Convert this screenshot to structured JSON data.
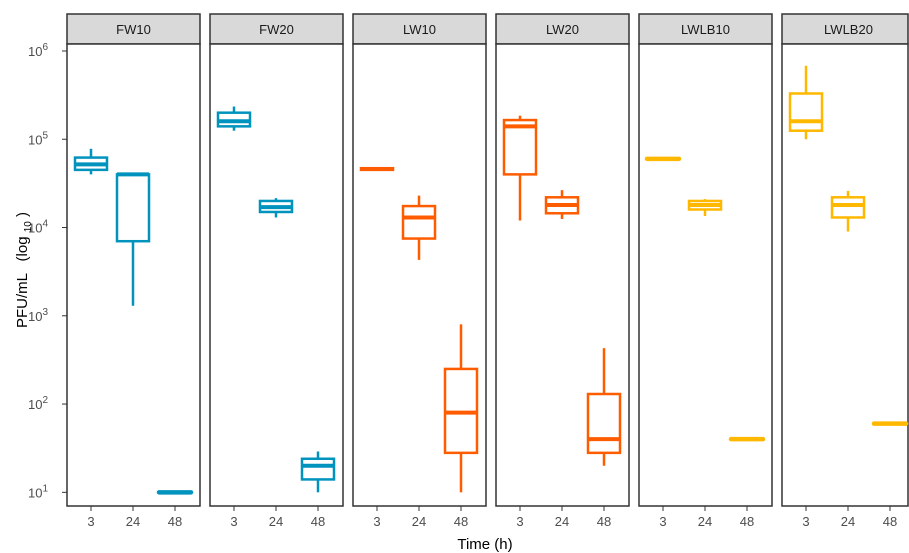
{
  "chart_data": {
    "type": "box",
    "xlabel": "Time (h)",
    "ylabel": "PFU/mL",
    "ylabel_suffix": "(log",
    "ylabel_sub": "10",
    "ylabel_close": ")",
    "yscale": "log10",
    "ylim": [
      7,
      1200000
    ],
    "yticks": [
      {
        "value": 10,
        "base": "10",
        "exp": "1"
      },
      {
        "value": 100,
        "base": "10",
        "exp": "2"
      },
      {
        "value": 1000,
        "base": "10",
        "exp": "3"
      },
      {
        "value": 10000,
        "base": "10",
        "exp": "4"
      },
      {
        "value": 100000,
        "base": "10",
        "exp": "5"
      },
      {
        "value": 1000000,
        "base": "10",
        "exp": "6"
      }
    ],
    "categories": [
      "3",
      "24",
      "48"
    ],
    "grid": false,
    "panels": [
      {
        "name": "FW10",
        "color": "#0093bd",
        "boxes": [
          {
            "time": "3",
            "min": 40000,
            "q1": 45000,
            "median": 52000,
            "q3": 62000,
            "max": 78000
          },
          {
            "time": "24",
            "min": 1300,
            "q1": 7000,
            "median": 40000,
            "q3": 40000,
            "max": 40000
          },
          {
            "time": "48",
            "min": 10,
            "q1": 10,
            "median": 10,
            "q3": 10,
            "max": 10
          }
        ]
      },
      {
        "name": "FW20",
        "color": "#0093bd",
        "boxes": [
          {
            "time": "3",
            "min": 125000,
            "q1": 140000,
            "median": 160000,
            "q3": 200000,
            "max": 235000
          },
          {
            "time": "24",
            "min": 13000,
            "q1": 15000,
            "median": 17000,
            "q3": 20000,
            "max": 21500
          },
          {
            "time": "48",
            "min": 10,
            "q1": 14,
            "median": 20,
            "q3": 24,
            "max": 29
          }
        ]
      },
      {
        "name": "LW10",
        "color": "#ff5c00",
        "boxes": [
          {
            "time": "3",
            "min": 45000,
            "q1": 45000,
            "median": 46000,
            "q3": 47000,
            "max": 47000
          },
          {
            "time": "24",
            "min": 4300,
            "q1": 7500,
            "median": 13000,
            "q3": 17500,
            "max": 23000
          },
          {
            "time": "48",
            "min": 10,
            "q1": 28,
            "median": 80,
            "q3": 250,
            "max": 800
          }
        ]
      },
      {
        "name": "LW20",
        "color": "#ff5c00",
        "boxes": [
          {
            "time": "3",
            "min": 12000,
            "q1": 40000,
            "median": 140000,
            "q3": 165000,
            "max": 185000
          },
          {
            "time": "24",
            "min": 12500,
            "q1": 14500,
            "median": 18000,
            "q3": 22000,
            "max": 26500
          },
          {
            "time": "48",
            "min": 20,
            "q1": 28,
            "median": 40,
            "q3": 130,
            "max": 430
          }
        ]
      },
      {
        "name": "LWLB10",
        "color": "#ffb800",
        "boxes": [
          {
            "time": "3",
            "min": 60000,
            "q1": 60000,
            "median": 60000,
            "q3": 60000,
            "max": 60000
          },
          {
            "time": "24",
            "min": 13500,
            "q1": 16000,
            "median": 18000,
            "q3": 20000,
            "max": 21000
          },
          {
            "time": "48",
            "min": 40,
            "q1": 40,
            "median": 40,
            "q3": 40,
            "max": 40
          }
        ]
      },
      {
        "name": "LWLB20",
        "color": "#ffb800",
        "boxes": [
          {
            "time": "3",
            "min": 100000,
            "q1": 125000,
            "median": 160000,
            "q3": 330000,
            "max": 680000
          },
          {
            "time": "24",
            "min": 9000,
            "q1": 13000,
            "median": 18000,
            "q3": 22000,
            "max": 26000
          },
          {
            "time": "48",
            "min": 60,
            "q1": 60,
            "median": 60,
            "q3": 60,
            "max": 60
          }
        ]
      }
    ]
  }
}
